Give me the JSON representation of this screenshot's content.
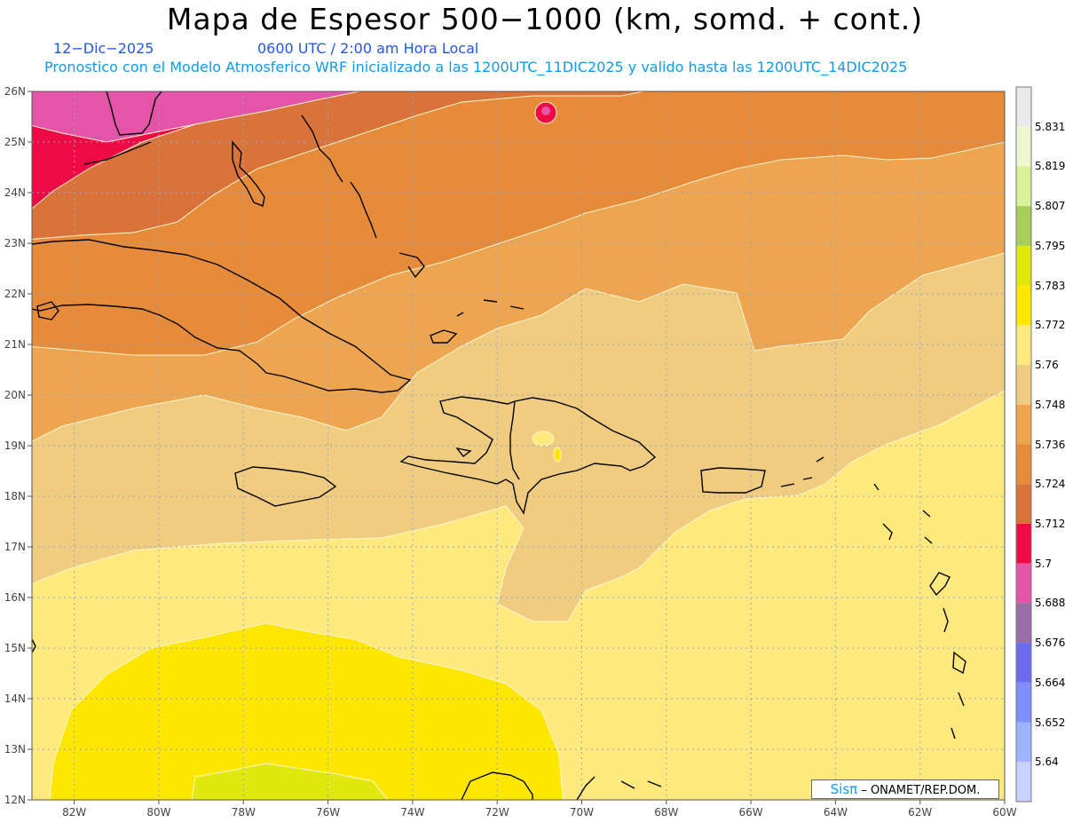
{
  "header": {
    "title": "Mapa de Espesor 500−1000 (km, somd. + cont.)",
    "date": "12−Dic−2025",
    "time": "0600 UTC / 2:00 am Hora Local",
    "description": "Pronostico con el Modelo Atmosferico WRF inicializado a las 1200UTC_11DIC2025 y valido hasta las  1200UTC_14DIC2025"
  },
  "map": {
    "lat_range": [
      12,
      26
    ],
    "lon_range": [
      -83,
      -60
    ],
    "lat_ticks": [
      "12N",
      "13N",
      "14N",
      "15N",
      "16N",
      "17N",
      "18N",
      "19N",
      "20N",
      "21N",
      "22N",
      "23N",
      "24N",
      "25N",
      "26N"
    ],
    "lon_ticks": [
      "82W",
      "80W",
      "78W",
      "76W",
      "74W",
      "72W",
      "70W",
      "68W",
      "66W",
      "64W",
      "62W",
      "60W"
    ]
  },
  "colorbar": {
    "levels": [
      "5.64",
      "5.652",
      "5.664",
      "5.676",
      "5.688",
      "5.7",
      "5.712",
      "5.724",
      "5.736",
      "5.748",
      "5.76",
      "5.772",
      "5.783",
      "5.795",
      "5.807",
      "5.819",
      "5.831"
    ],
    "colors": [
      "#c8d2ff",
      "#9fb4ff",
      "#7f8fff",
      "#6b6bf0",
      "#9b6ea8",
      "#e455a7",
      "#ee0b45",
      "#d9733a",
      "#e68b3a",
      "#eda54f",
      "#f0cc80",
      "#fde97e",
      "#fde600",
      "#e0e80d",
      "#a6cf58",
      "#d8f29a",
      "#eef7cf",
      "#e9e9e9"
    ]
  },
  "credit": {
    "logo": "Sisπ",
    "text": " – ONAMET/REP.DOM."
  }
}
